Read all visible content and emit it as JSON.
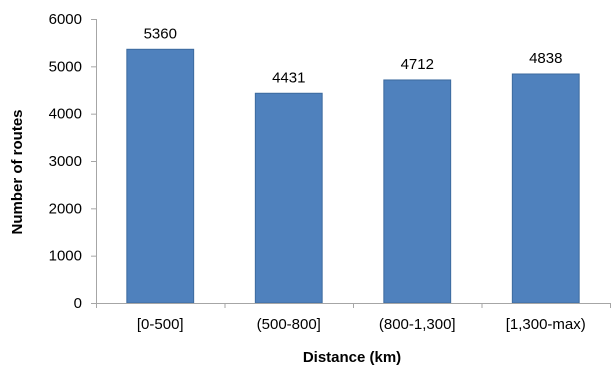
{
  "chart_data": {
    "type": "bar",
    "title": "",
    "xlabel": "Distance (km)",
    "ylabel": "Number of routes",
    "categories": [
      "[0-500]",
      "(500-800]",
      "(800-1,300]",
      "[1,300-max)"
    ],
    "values": [
      5360,
      4431,
      4712,
      4838
    ],
    "value_labels": [
      "5360",
      "4431",
      "4712",
      "4838"
    ],
    "ylim": [
      0,
      6000
    ],
    "yticks": [
      0,
      1000,
      2000,
      3000,
      4000,
      5000,
      6000
    ],
    "ytick_labels": [
      "0",
      "1000",
      "2000",
      "3000",
      "4000",
      "5000",
      "6000"
    ],
    "grid": false,
    "legend": "none",
    "colors": {
      "bar_fill": "#4f81bd",
      "bar_edge": "#3c6a9e",
      "axis": "#a6a6a6",
      "text": "#000000"
    }
  }
}
